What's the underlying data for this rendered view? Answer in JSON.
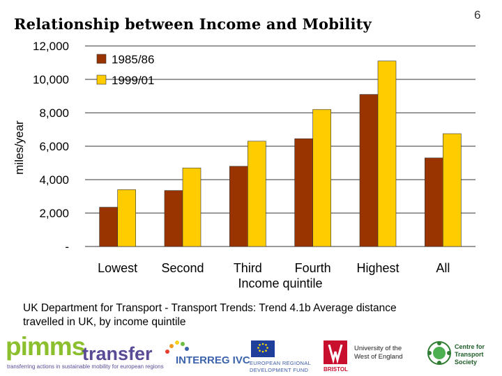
{
  "slide": {
    "title": "Relationship between Income and Mobility",
    "page_number": "6",
    "caption_line1": "UK Department for Transport - Transport Trends: Trend 4.1b Average distance",
    "caption_line2": "travelled in UK, by income quintile"
  },
  "chart_data": {
    "type": "bar",
    "title": "",
    "xlabel": "Income quintile",
    "ylabel": "miles/year",
    "categories": [
      "Lowest",
      "Second",
      "Third",
      "Fourth",
      "Highest",
      "All"
    ],
    "series": [
      {
        "name": "1985/86",
        "color": "#993300",
        "values": [
          2350,
          3350,
          4800,
          6450,
          9100,
          5300
        ]
      },
      {
        "name": "1999/01",
        "color": "#ffcc00",
        "values": [
          3400,
          4700,
          6300,
          8200,
          11100,
          6750
        ]
      }
    ],
    "ylim": [
      0,
      12000
    ],
    "yticks": [
      0,
      2000,
      4000,
      6000,
      8000,
      10000,
      12000
    ],
    "ytick_labels": [
      "-",
      "2,000",
      "4,000",
      "6,000",
      "8,000",
      "10,000",
      "12,000"
    ],
    "grid": true,
    "legend": "top-left"
  },
  "logos": {
    "pimms_main": "pimms",
    "pimms_transfer": "transfer",
    "pimms_tagline": "transferring actions in sustainable mobility for european regions",
    "interreg": "INTERREG IVC",
    "erdf_line1": "EUROPEAN REGIONAL",
    "erdf_line2": "DEVELOPMENT FUND",
    "uwe_mark": "BRISTOL",
    "uwe_line1": "University of the",
    "uwe_line2": "West of England",
    "cts_line1": "Centre for",
    "cts_line2": "Transport",
    "cts_line3": "Society"
  }
}
